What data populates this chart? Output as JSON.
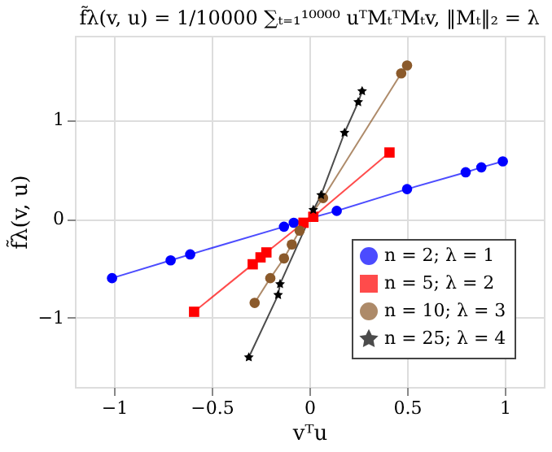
{
  "chart_data": {
    "type": "line",
    "title": "f̃λ(v, u) = 1/10000 ∑ₜ₌₁¹⁰⁰⁰⁰ uᵀMₜᵀMₜv,  ‖Mₜ‖₂ = λ",
    "xlabel": "vᵀu",
    "ylabel": "f̃λ(v, u)",
    "xlim": [
      -1.2,
      1.2
    ],
    "ylim": [
      -1.7,
      1.85
    ],
    "xticks": [
      -1,
      -0.5,
      0,
      0.5,
      1
    ],
    "yticks": [
      -1,
      0,
      1
    ],
    "grid": true,
    "legend": "bottom right",
    "series": [
      {
        "name": "n = 2; λ = 1",
        "color": "#0000ff",
        "marker": "circle",
        "x": [
          -1.01,
          -0.71,
          -0.61,
          -0.13,
          -0.08,
          0.14,
          0.5,
          0.8,
          0.88,
          0.99
        ],
        "values": [
          -0.6,
          -0.42,
          -0.36,
          -0.08,
          -0.04,
          0.08,
          0.3,
          0.47,
          0.52,
          0.58
        ]
      },
      {
        "name": "n = 5; λ = 2",
        "color": "#ff0000",
        "marker": "square",
        "x": [
          -0.59,
          -0.29,
          -0.25,
          -0.22,
          -0.03,
          0.02,
          0.41
        ],
        "values": [
          -0.94,
          -0.46,
          -0.39,
          -0.34,
          -0.04,
          0.02,
          0.67
        ]
      },
      {
        "name": "n = 10; λ = 3",
        "color": "#8b5a2b",
        "marker": "circle",
        "x": [
          -0.28,
          -0.2,
          -0.13,
          -0.09,
          -0.05,
          0.07,
          0.47,
          0.5
        ],
        "values": [
          -0.85,
          -0.6,
          -0.4,
          -0.26,
          -0.12,
          0.21,
          1.47,
          1.55
        ]
      },
      {
        "name": "n = 25; λ = 4",
        "color": "#000000",
        "marker": "star",
        "x": [
          -0.31,
          -0.16,
          -0.15,
          0.02,
          0.06,
          0.18,
          0.25,
          0.27
        ],
        "values": [
          -1.4,
          -0.77,
          -0.66,
          0.09,
          0.24,
          0.87,
          1.18,
          1.29
        ]
      }
    ]
  }
}
